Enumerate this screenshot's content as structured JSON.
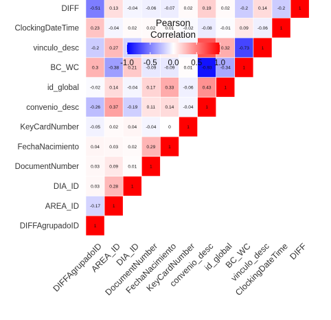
{
  "chart_data": {
    "type": "heatmap",
    "variables": [
      "DIFFAgrupadoID",
      "AREA_ID",
      "DIA_ID",
      "DocumentNumber",
      "FechaNacimiento",
      "KeyCardNumber",
      "convenio_desc",
      "id_global",
      "BC_WC",
      "vinculo_desc",
      "ClockingDateTime",
      "DIFF"
    ],
    "cells": [
      [
        {
          "v": 1,
          "t": "1"
        }
      ],
      [
        {
          "v": -0.17,
          "t": "-0.17"
        },
        {
          "v": 1,
          "t": "1"
        }
      ],
      [
        {
          "v": 0.03,
          "t": "0.03"
        },
        {
          "v": 0.28,
          "t": "0.28"
        },
        {
          "v": 1,
          "t": "1"
        }
      ],
      [
        {
          "v": 0.03,
          "t": "0.03"
        },
        {
          "v": 0.09,
          "t": "0.09"
        },
        {
          "v": 0.01,
          "t": "0.01"
        },
        {
          "v": 1,
          "t": "1"
        }
      ],
      [
        {
          "v": 0.04,
          "t": "0.04"
        },
        {
          "v": 0.03,
          "t": "0.03"
        },
        {
          "v": 0.02,
          "t": "0.02"
        },
        {
          "v": 0.29,
          "t": "0.29"
        },
        {
          "v": 1,
          "t": "1"
        }
      ],
      [
        {
          "v": -0.05,
          "t": "-0.05"
        },
        {
          "v": 0.02,
          "t": "0.02"
        },
        {
          "v": 0.04,
          "t": "0.04"
        },
        {
          "v": -0.04,
          "t": "-0.04"
        },
        {
          "v": 0,
          "t": "0"
        },
        {
          "v": 1,
          "t": "1"
        }
      ],
      [
        {
          "v": -0.26,
          "t": "-0.26"
        },
        {
          "v": 0.37,
          "t": "0.37"
        },
        {
          "v": -0.19,
          "t": "-0.19"
        },
        {
          "v": 0.11,
          "t": "0.11"
        },
        {
          "v": 0.14,
          "t": "0.14"
        },
        {
          "v": -0.04,
          "t": "-0.04"
        },
        {
          "v": 1,
          "t": "1"
        }
      ],
      [
        {
          "v": -0.02,
          "t": "-0.02"
        },
        {
          "v": 0.14,
          "t": "0.14"
        },
        {
          "v": -0.04,
          "t": "-0.04"
        },
        {
          "v": 0.17,
          "t": "0.17"
        },
        {
          "v": 0.33,
          "t": "0.33"
        },
        {
          "v": -0.06,
          "t": "-0.06"
        },
        {
          "v": 0.43,
          "t": "0.43"
        },
        {
          "v": 1,
          "t": "1"
        }
      ],
      [
        {
          "v": 0.3,
          "t": "0.3"
        },
        {
          "v": -0.38,
          "t": "-0.38"
        },
        {
          "v": 0.21,
          "t": "0.21"
        },
        {
          "v": -0.09,
          "t": "-0.09"
        },
        {
          "v": -0.09,
          "t": "-0.09"
        },
        {
          "v": 0.01,
          "t": "0.01"
        },
        {
          "v": -0.93,
          "t": "-0.93"
        },
        {
          "v": -0.34,
          "t": "-0.34"
        },
        {
          "v": 1,
          "t": "1"
        }
      ],
      [
        {
          "v": -0.2,
          "t": "-0.2"
        },
        {
          "v": 0.27,
          "t": "0.27"
        },
        {
          "v": -0.17,
          "t": "-0.17"
        },
        {
          "v": 0.09,
          "t": "0.09"
        },
        {
          "v": 0.07,
          "t": "0.07"
        },
        {
          "v": -0.04,
          "t": "-0.04"
        },
        {
          "v": 0.68,
          "t": "0.68"
        },
        {
          "v": 0.32,
          "t": "0.32"
        },
        {
          "v": -0.73,
          "t": "-0.73"
        },
        {
          "v": 1,
          "t": "1"
        }
      ],
      [
        {
          "v": 0.23,
          "t": "0.23"
        },
        {
          "v": -0.04,
          "t": "-0.04"
        },
        {
          "v": 0.02,
          "t": "0.02"
        },
        {
          "v": 0.02,
          "t": "0.02"
        },
        {
          "v": 0.01,
          "t": "0.01"
        },
        {
          "v": -0.02,
          "t": "-0.02"
        },
        {
          "v": -0.08,
          "t": "-0.08"
        },
        {
          "v": -0.01,
          "t": "-0.01"
        },
        {
          "v": 0.09,
          "t": "0.09"
        },
        {
          "v": -0.06,
          "t": "-0.06"
        },
        {
          "v": 1,
          "t": "1"
        }
      ],
      [
        {
          "v": -0.51,
          "t": "-0.51"
        },
        {
          "v": 0.13,
          "t": "0.13"
        },
        {
          "v": -0.04,
          "t": "-0.04"
        },
        {
          "v": -0.06,
          "t": "-0.06"
        },
        {
          "v": -0.07,
          "t": "-0.07"
        },
        {
          "v": 0.02,
          "t": "0.02"
        },
        {
          "v": 0.19,
          "t": "0.19"
        },
        {
          "v": 0.02,
          "t": "0.02"
        },
        {
          "v": -0.2,
          "t": "-0.2"
        },
        {
          "v": 0.14,
          "t": "0.14"
        },
        {
          "v": -0.2,
          "t": "-0.2"
        },
        {
          "v": 1,
          "t": "1"
        }
      ]
    ],
    "legend": {
      "title_line1": "Pearson",
      "title_line2": "Correlation",
      "ticks": [
        {
          "value": -1.0,
          "label": "-1.0"
        },
        {
          "value": -0.5,
          "label": "-0.5"
        },
        {
          "value": 0.0,
          "label": "0.0"
        },
        {
          "value": 0.5,
          "label": "0.5"
        },
        {
          "value": 1.0,
          "label": "1.0"
        }
      ],
      "range": [
        -1,
        1
      ],
      "placement": "top-left-inside"
    },
    "colors": {
      "low": "#0000FF",
      "mid": "#FFFFFF",
      "high": "#FF0000",
      "cell_border": "#FFFFFF",
      "label_text": "#333333"
    },
    "shape": "lower-triangle",
    "grid": false
  }
}
